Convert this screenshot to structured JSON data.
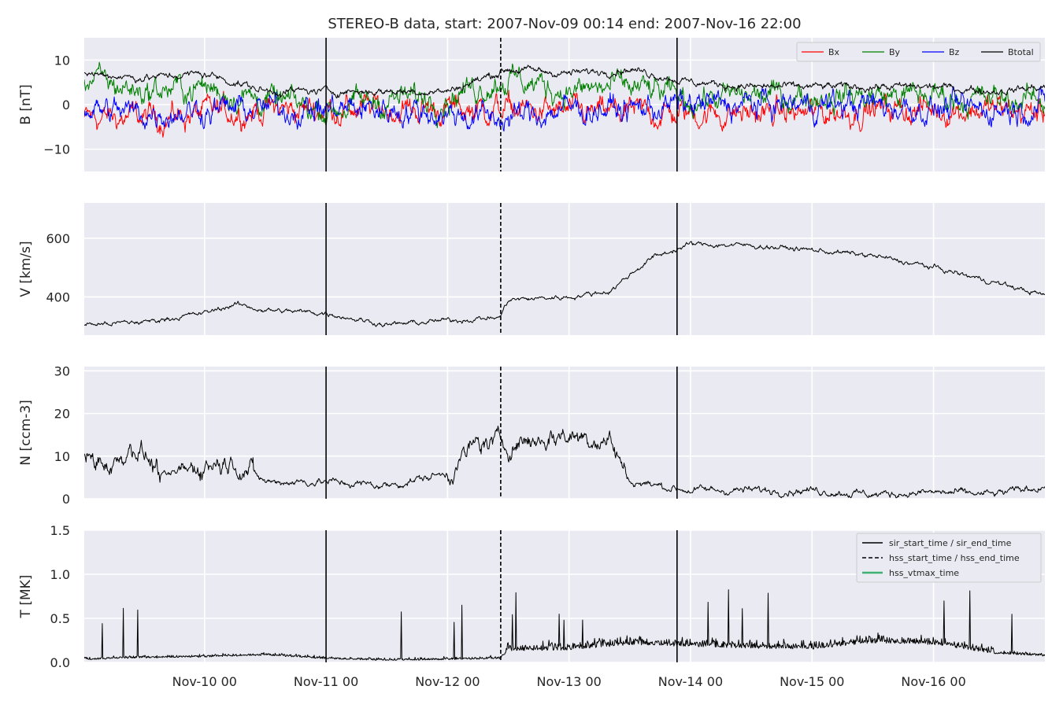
{
  "chart_data": {
    "title": "STEREO-B data, start: 2007-Nov-09 00:14  end: 2007-Nov-16 22:00",
    "type": "line",
    "x_axis": {
      "unit": "days",
      "range": [
        "2007-11-09 00:14",
        "2007-11-16 22:00"
      ],
      "tick_labels": [
        "Nov-10 00",
        "Nov-11 00",
        "Nov-12 00",
        "Nov-13 00",
        "Nov-14 00",
        "Nov-15 00",
        "Nov-16 00"
      ],
      "tick_dates": [
        "2007-11-10 00:00",
        "2007-11-11 00:00",
        "2007-11-12 00:00",
        "2007-11-13 00:00",
        "2007-11-14 00:00",
        "2007-11-15 00:00",
        "2007-11-16 00:00"
      ]
    },
    "events": [
      {
        "type": "sir_start_time",
        "time": "2007-11-11 00:00",
        "style": "solid"
      },
      {
        "type": "hss_start_time",
        "time": "2007-11-12 10:30",
        "style": "dashed"
      },
      {
        "type": "sir_end_time",
        "time": "2007-11-13 21:20",
        "style": "solid"
      }
    ],
    "panels": [
      {
        "id": "B",
        "ylabel": "B [nT]",
        "ylim": [
          -15,
          15
        ],
        "yticks": [
          -10,
          0,
          10
        ],
        "legend_position": "top-right",
        "series": [
          {
            "name": "Bx",
            "color": "#ff0000",
            "kind": "rough",
            "x": [
              "2007-11-09 00:14",
              "2007-11-09 12:00",
              "2007-11-10 00:00",
              "2007-11-10 12:00",
              "2007-11-11 00:00",
              "2007-11-11 12:00",
              "2007-11-12 00:00",
              "2007-11-12 12:00",
              "2007-11-13 00:00",
              "2007-11-13 12:00",
              "2007-11-14 00:00",
              "2007-11-14 12:00",
              "2007-11-15 00:00",
              "2007-11-15 12:00",
              "2007-11-16 00:00",
              "2007-11-16 12:00",
              "2007-11-16 22:00"
            ],
            "y": [
              -3,
              -3,
              -2,
              -1,
              -1,
              -1,
              -1,
              -1,
              -2,
              -2,
              -2,
              -2,
              -2,
              -1,
              -1,
              -1,
              -2
            ]
          },
          {
            "name": "By",
            "color": "#008000",
            "kind": "rough",
            "x": [
              "2007-11-09 00:14",
              "2007-11-09 12:00",
              "2007-11-10 00:00",
              "2007-11-10 12:00",
              "2007-11-11 00:00",
              "2007-11-11 12:00",
              "2007-11-12 00:00",
              "2007-11-12 12:00",
              "2007-11-13 00:00",
              "2007-11-13 12:00",
              "2007-11-14 00:00",
              "2007-11-14 12:00",
              "2007-11-15 00:00",
              "2007-11-15 12:00",
              "2007-11-16 00:00",
              "2007-11-16 12:00",
              "2007-11-16 22:00"
            ],
            "y": [
              6,
              3,
              4,
              1,
              -1,
              1,
              2,
              6,
              3,
              4,
              1,
              2,
              2,
              2,
              2,
              1,
              1
            ]
          },
          {
            "name": "Bz",
            "color": "#0000ff",
            "kind": "rough",
            "x": [
              "2007-11-09 00:14",
              "2007-11-09 12:00",
              "2007-11-10 00:00",
              "2007-11-10 12:00",
              "2007-11-11 00:00",
              "2007-11-11 12:00",
              "2007-11-12 00:00",
              "2007-11-12 12:00",
              "2007-11-13 00:00",
              "2007-11-13 12:00",
              "2007-11-14 00:00",
              "2007-11-14 12:00",
              "2007-11-15 00:00",
              "2007-11-15 12:00",
              "2007-11-16 00:00",
              "2007-11-16 12:00",
              "2007-11-16 22:00"
            ],
            "y": [
              -1,
              -2,
              -1,
              -1,
              -1,
              -1,
              -2,
              -3,
              -1,
              -1,
              0,
              0,
              0,
              0,
              -1,
              -1,
              0
            ]
          },
          {
            "name": "Btotal",
            "color": "#000000",
            "kind": "envelope",
            "x": [
              "2007-11-09 00:14",
              "2007-11-09 12:00",
              "2007-11-10 00:00",
              "2007-11-10 12:00",
              "2007-11-11 00:00",
              "2007-11-11 12:00",
              "2007-11-12 00:00",
              "2007-11-12 12:00",
              "2007-11-13 00:00",
              "2007-11-13 12:00",
              "2007-11-14 00:00",
              "2007-11-14 12:00",
              "2007-11-15 00:00",
              "2007-11-15 12:00",
              "2007-11-16 00:00",
              "2007-11-16 12:00",
              "2007-11-16 22:00"
            ],
            "y": [
              7,
              6,
              7,
              3,
              3,
              3,
              3,
              8,
              7,
              8,
              5,
              4,
              4,
              4,
              4,
              3,
              4
            ]
          }
        ]
      },
      {
        "id": "V",
        "ylabel": "V [km/s]",
        "ylim": [
          270,
          720
        ],
        "yticks": [
          400,
          600
        ],
        "series": [
          {
            "name": "V",
            "color": "#000000",
            "x": [
              "2007-11-09 00:14",
              "2007-11-09 12:00",
              "2007-11-10 00:00",
              "2007-11-10 06:00",
              "2007-11-10 12:00",
              "2007-11-11 00:00",
              "2007-11-11 12:00",
              "2007-11-12 00:00",
              "2007-11-12 10:20",
              "2007-11-12 12:00",
              "2007-11-13 00:00",
              "2007-11-13 08:00",
              "2007-11-13 16:00",
              "2007-11-14 00:00",
              "2007-11-14 12:00",
              "2007-11-15 00:00",
              "2007-11-15 12:00",
              "2007-11-16 00:00",
              "2007-11-16 12:00",
              "2007-11-16 22:00"
            ],
            "y": [
              305,
              315,
              345,
              375,
              355,
              345,
              305,
              320,
              330,
              390,
              400,
              420,
              530,
              580,
              575,
              560,
              540,
              500,
              450,
              405
            ]
          }
        ]
      },
      {
        "id": "N",
        "ylabel": "N [ccm-3]",
        "ylim": [
          0,
          31
        ],
        "yticks": [
          0,
          10,
          20,
          30
        ],
        "series": [
          {
            "name": "N",
            "color": "#000000",
            "x": [
              "2007-11-09 00:14",
              "2007-11-09 06:00",
              "2007-11-09 10:00",
              "2007-11-09 16:00",
              "2007-11-10 00:00",
              "2007-11-10 06:00",
              "2007-11-10 12:00",
              "2007-11-11 00:00",
              "2007-11-11 12:00",
              "2007-11-12 00:00",
              "2007-11-12 06:00",
              "2007-11-12 12:00",
              "2007-11-13 00:00",
              "2007-11-13 08:00",
              "2007-11-13 12:00",
              "2007-11-14 00:00",
              "2007-11-14 12:00",
              "2007-11-15 00:00",
              "2007-11-15 12:00",
              "2007-11-16 00:00",
              "2007-11-16 12:00",
              "2007-11-16 22:00"
            ],
            "y": [
              10,
              8,
              13,
              5,
              8,
              9,
              4,
              4,
              3,
              6,
              13,
              13,
              15,
              14,
              4,
              2,
              2,
              2,
              1,
              1.5,
              1,
              3
            ]
          }
        ]
      },
      {
        "id": "T",
        "ylabel": "T [MK]",
        "ylim": [
          0,
          1.5
        ],
        "yticks": [
          0.0,
          0.5,
          1.0,
          1.5
        ],
        "legend_position": "top-right",
        "legend_entries": [
          "sir_start_time / sir_end_time",
          "hss_start_time / hss_end_time",
          "hss_vtmax_time"
        ],
        "legend_colors": [
          "#000000",
          "#000000",
          "#3cb371"
        ],
        "series": [
          {
            "name": "T",
            "color": "#000000",
            "x": [
              "2007-11-09 00:14",
              "2007-11-09 12:00",
              "2007-11-10 00:00",
              "2007-11-10 12:00",
              "2007-11-11 00:00",
              "2007-11-11 12:00",
              "2007-11-12 00:00",
              "2007-11-12 10:20",
              "2007-11-12 12:00",
              "2007-11-13 00:00",
              "2007-11-13 12:00",
              "2007-11-14 00:00",
              "2007-11-14 12:00",
              "2007-11-15 00:00",
              "2007-11-15 12:00",
              "2007-11-16 00:00",
              "2007-11-16 12:00",
              "2007-11-16 22:00"
            ],
            "y": [
              0.03,
              0.05,
              0.06,
              0.08,
              0.04,
              0.02,
              0.03,
              0.04,
              0.13,
              0.14,
              0.2,
              0.18,
              0.16,
              0.15,
              0.22,
              0.2,
              0.1,
              0.07
            ]
          }
        ]
      }
    ]
  }
}
